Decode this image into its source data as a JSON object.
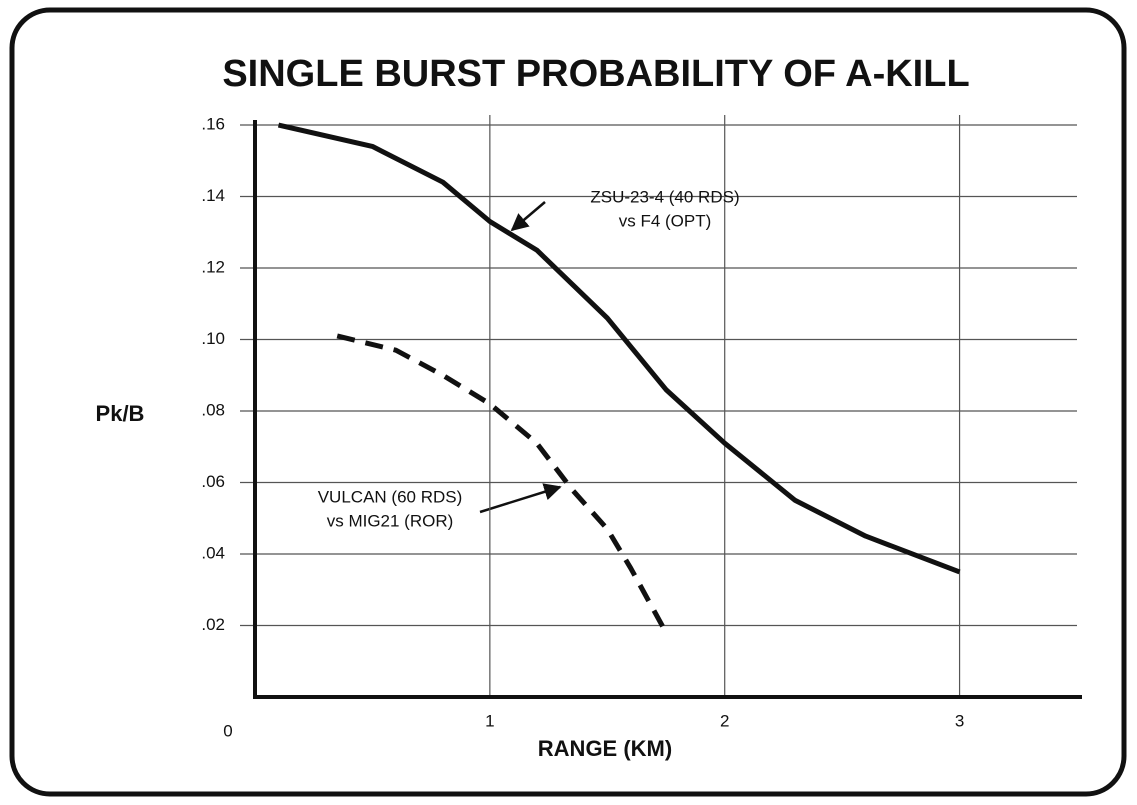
{
  "chart_data": {
    "type": "line",
    "title": "SINGLE BURST PROBABILITY OF A-KILL",
    "x_label": "RANGE (KM)",
    "y_label": "Pk/B",
    "xlim": [
      0,
      3.5
    ],
    "ylim": [
      0,
      0.16
    ],
    "xticks": [
      0,
      1,
      2,
      3
    ],
    "yticks": [
      {
        "value": 0.02,
        "label": ".02"
      },
      {
        "value": 0.04,
        "label": ".04"
      },
      {
        "value": 0.06,
        "label": ".06"
      },
      {
        "value": 0.08,
        "label": ".08"
      },
      {
        "value": 0.1,
        "label": ".10"
      },
      {
        "value": 0.12,
        "label": ".12"
      },
      {
        "value": 0.14,
        "label": ".14"
      },
      {
        "value": 0.16,
        "label": ".16"
      }
    ],
    "grid": true,
    "series": [
      {
        "color": "#111111",
        "dash": "solid",
        "x": [
          0.1,
          0.5,
          0.8,
          1.0,
          1.2,
          1.5,
          1.75,
          2.0,
          2.3,
          2.6,
          3.0
        ],
        "values": [
          0.16,
          0.154,
          0.144,
          0.133,
          0.125,
          0.106,
          0.086,
          0.071,
          0.055,
          0.045,
          0.035
        ]
      },
      {
        "color": "#111111",
        "dash": "dashed",
        "x": [
          0.35,
          0.6,
          0.8,
          1.0,
          1.2,
          1.35,
          1.5,
          1.6,
          1.7,
          1.75
        ],
        "values": [
          0.101,
          0.097,
          0.09,
          0.082,
          0.071,
          0.058,
          0.047,
          0.036,
          0.024,
          0.018
        ]
      }
    ],
    "annotations": [
      {
        "lines": [
          "ZSU-23-4 (40 RDS)",
          "vs F4 (OPT)"
        ]
      },
      {
        "lines": [
          "VULCAN (60 RDS)",
          "vs MIG21 (ROR)"
        ]
      }
    ]
  }
}
